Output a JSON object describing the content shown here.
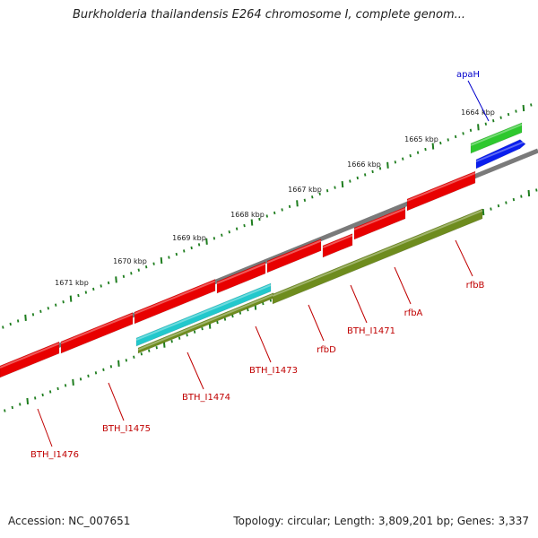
{
  "title": "Burkholderia thailandensis E264 chromosome I, complete genom...",
  "footer": {
    "accession": "Accession: NC_007651",
    "topology": "Topology: circular; Length: 3,809,201 bp; Genes: 3,337"
  },
  "colors": {
    "backbone": "#7a7a7a",
    "tick": "#1e7d1e",
    "gene_red": "#e80000",
    "label_red": "#c00000",
    "cyan": "#22c8cc",
    "olive": "#6e8c1e",
    "green": "#2ec82e",
    "blue": "#0a1eee",
    "label_blue": "#0000cc"
  },
  "ticks": [
    {
      "label": "1664 kbp"
    },
    {
      "label": "1665 kbp"
    },
    {
      "label": "1666 kbp"
    },
    {
      "label": "1667 kbp"
    },
    {
      "label": "1668 kbp"
    },
    {
      "label": "1669 kbp"
    },
    {
      "label": "1670 kbp"
    },
    {
      "label": "1671 kbp"
    }
  ],
  "genes": [
    {
      "name": "apaH",
      "color": "blue"
    },
    {
      "name": "rfbB",
      "color": "red"
    },
    {
      "name": "rfbA",
      "color": "red"
    },
    {
      "name": "BTH_I1471",
      "color": "red"
    },
    {
      "name": "rfbD",
      "color": "red"
    },
    {
      "name": "BTH_I1473",
      "color": "red"
    },
    {
      "name": "BTH_I1474",
      "color": "red"
    },
    {
      "name": "BTH_I1475",
      "color": "red"
    },
    {
      "name": "BTH_I1476",
      "color": "red"
    }
  ]
}
